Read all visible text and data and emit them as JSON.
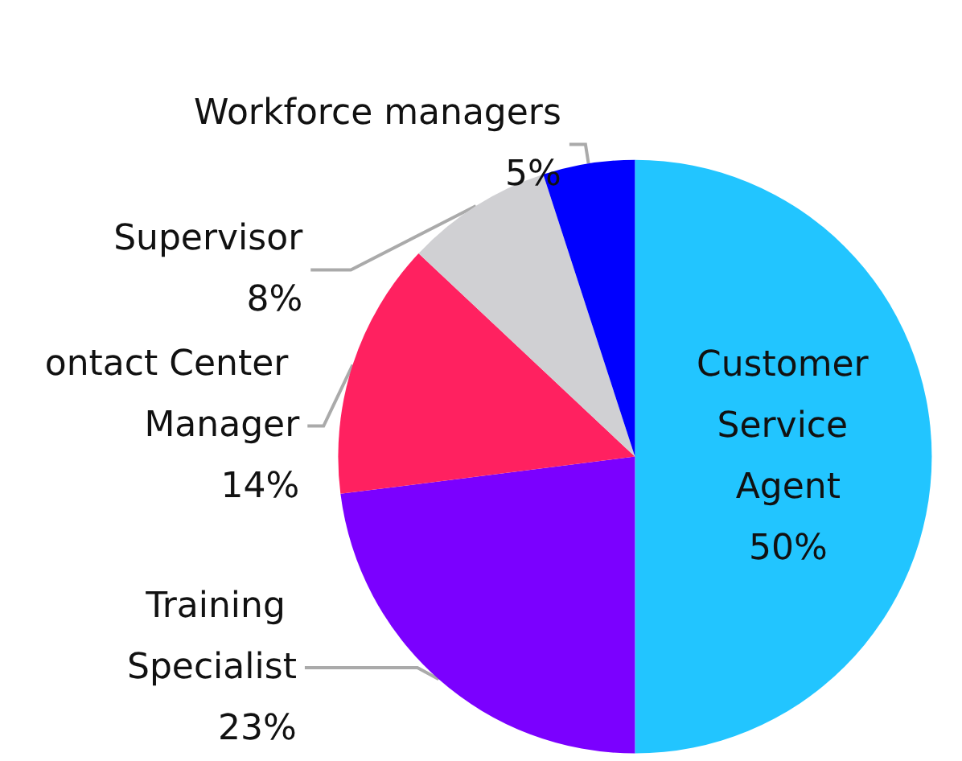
{
  "chart_data": {
    "type": "pie",
    "categories": [
      "Customer Service Agent",
      "Training Specialist",
      "ontact Center Manager",
      "Supervisor",
      "Workforce managers"
    ],
    "values": [
      50,
      23,
      14,
      8,
      5
    ],
    "colors": [
      "#22c5ff",
      "#7b00ff",
      "#ff2160",
      "#d0d0d3",
      "#0000ff"
    ],
    "value_labels": [
      "50%",
      "23%",
      "14%",
      "8%",
      "5%"
    ],
    "legend": false
  }
}
